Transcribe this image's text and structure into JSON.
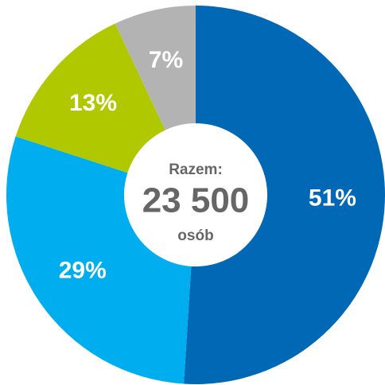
{
  "chart_data": {
    "type": "donut",
    "categories": [
      null,
      null,
      null,
      null
    ],
    "series": [
      {
        "values": [
          51,
          29,
          13,
          7
        ],
        "value_labels": [
          "51%",
          "29%",
          "13%",
          "7%"
        ],
        "colors": [
          "#0068b4",
          "#00aeef",
          "#b0c800",
          "#b3b3b3"
        ]
      }
    ],
    "center_title": "Razem:",
    "center_value": "23 500",
    "center_unit": "osób"
  }
}
